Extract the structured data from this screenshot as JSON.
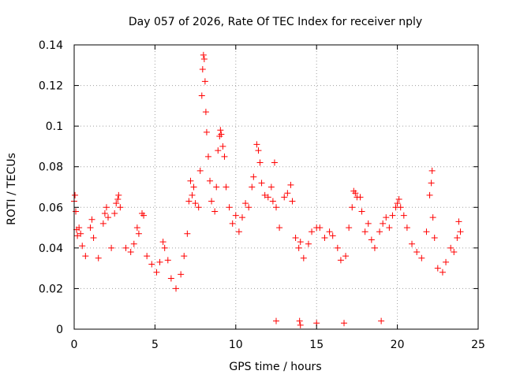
{
  "chart_data": {
    "type": "scatter",
    "title": "Day 057 of 2026, Rate Of TEC Index for receiver nply",
    "xlabel": "GPS time / hours",
    "ylabel": "ROTI / TECUs",
    "xlim": [
      0,
      25
    ],
    "ylim": [
      0,
      0.14
    ],
    "xticks": [
      "0",
      "5",
      "10",
      "15",
      "20",
      "25"
    ],
    "yticks": [
      "0",
      "0.02",
      "0.04",
      "0.06",
      "0.08",
      "0.1",
      "0.12",
      "0.14"
    ],
    "grid": true,
    "marker": "+",
    "color": "#ff0000",
    "series": [
      {
        "name": "",
        "points": [
          [
            0.0,
            0.063
          ],
          [
            0.05,
            0.066
          ],
          [
            0.1,
            0.058
          ],
          [
            0.15,
            0.049
          ],
          [
            0.2,
            0.046
          ],
          [
            0.3,
            0.05
          ],
          [
            0.4,
            0.047
          ],
          [
            0.5,
            0.041
          ],
          [
            0.7,
            0.036
          ],
          [
            1.0,
            0.05
          ],
          [
            1.1,
            0.054
          ],
          [
            1.2,
            0.045
          ],
          [
            1.5,
            0.035
          ],
          [
            1.8,
            0.052
          ],
          [
            1.9,
            0.057
          ],
          [
            2.0,
            0.06
          ],
          [
            2.1,
            0.055
          ],
          [
            2.3,
            0.04
          ],
          [
            2.5,
            0.057
          ],
          [
            2.6,
            0.062
          ],
          [
            2.7,
            0.064
          ],
          [
            2.75,
            0.066
          ],
          [
            2.85,
            0.06
          ],
          [
            3.2,
            0.04
          ],
          [
            3.5,
            0.038
          ],
          [
            3.7,
            0.042
          ],
          [
            3.9,
            0.05
          ],
          [
            4.0,
            0.047
          ],
          [
            4.2,
            0.057
          ],
          [
            4.3,
            0.056
          ],
          [
            4.5,
            0.036
          ],
          [
            4.8,
            0.032
          ],
          [
            5.1,
            0.028
          ],
          [
            5.3,
            0.033
          ],
          [
            5.5,
            0.043
          ],
          [
            5.6,
            0.04
          ],
          [
            5.8,
            0.034
          ],
          [
            6.0,
            0.025
          ],
          [
            6.3,
            0.02
          ],
          [
            6.6,
            0.027
          ],
          [
            6.8,
            0.036
          ],
          [
            7.0,
            0.047
          ],
          [
            7.1,
            0.063
          ],
          [
            7.2,
            0.073
          ],
          [
            7.3,
            0.066
          ],
          [
            7.4,
            0.07
          ],
          [
            7.5,
            0.062
          ],
          [
            7.7,
            0.06
          ],
          [
            7.8,
            0.078
          ],
          [
            7.9,
            0.115
          ],
          [
            7.95,
            0.128
          ],
          [
            8.0,
            0.135
          ],
          [
            8.05,
            0.133
          ],
          [
            8.1,
            0.122
          ],
          [
            8.15,
            0.107
          ],
          [
            8.2,
            0.097
          ],
          [
            8.3,
            0.085
          ],
          [
            8.4,
            0.073
          ],
          [
            8.5,
            0.063
          ],
          [
            8.7,
            0.058
          ],
          [
            8.8,
            0.07
          ],
          [
            8.9,
            0.088
          ],
          [
            9.0,
            0.095
          ],
          [
            9.05,
            0.098
          ],
          [
            9.1,
            0.096
          ],
          [
            9.2,
            0.09
          ],
          [
            9.3,
            0.085
          ],
          [
            9.4,
            0.07
          ],
          [
            9.6,
            0.06
          ],
          [
            9.8,
            0.052
          ],
          [
            10.0,
            0.056
          ],
          [
            10.2,
            0.048
          ],
          [
            10.4,
            0.055
          ],
          [
            10.6,
            0.062
          ],
          [
            10.8,
            0.06
          ],
          [
            11.0,
            0.07
          ],
          [
            11.1,
            0.075
          ],
          [
            11.3,
            0.091
          ],
          [
            11.4,
            0.088
          ],
          [
            11.5,
            0.082
          ],
          [
            11.6,
            0.072
          ],
          [
            11.8,
            0.066
          ],
          [
            12.0,
            0.065
          ],
          [
            12.2,
            0.07
          ],
          [
            12.3,
            0.063
          ],
          [
            12.4,
            0.082
          ],
          [
            12.5,
            0.06
          ],
          [
            12.7,
            0.05
          ],
          [
            13.0,
            0.065
          ],
          [
            13.2,
            0.067
          ],
          [
            13.4,
            0.071
          ],
          [
            13.5,
            0.063
          ],
          [
            13.7,
            0.045
          ],
          [
            13.9,
            0.04
          ],
          [
            14.0,
            0.043
          ],
          [
            14.2,
            0.035
          ],
          [
            14.5,
            0.042
          ],
          [
            14.7,
            0.048
          ],
          [
            15.0,
            0.05
          ],
          [
            15.2,
            0.05
          ],
          [
            15.5,
            0.045
          ],
          [
            15.8,
            0.048
          ],
          [
            16.0,
            0.046
          ],
          [
            16.3,
            0.04
          ],
          [
            16.5,
            0.034
          ],
          [
            16.8,
            0.036
          ],
          [
            17.0,
            0.05
          ],
          [
            17.2,
            0.06
          ],
          [
            17.3,
            0.068
          ],
          [
            17.4,
            0.067
          ],
          [
            17.5,
            0.065
          ],
          [
            17.7,
            0.065
          ],
          [
            17.8,
            0.058
          ],
          [
            18.0,
            0.048
          ],
          [
            18.2,
            0.052
          ],
          [
            18.4,
            0.044
          ],
          [
            18.6,
            0.04
          ],
          [
            18.9,
            0.048
          ],
          [
            19.1,
            0.052
          ],
          [
            19.3,
            0.055
          ],
          [
            19.5,
            0.05
          ],
          [
            19.7,
            0.056
          ],
          [
            19.9,
            0.06
          ],
          [
            20.0,
            0.062
          ],
          [
            20.1,
            0.064
          ],
          [
            20.2,
            0.06
          ],
          [
            20.4,
            0.056
          ],
          [
            20.6,
            0.05
          ],
          [
            20.9,
            0.042
          ],
          [
            21.2,
            0.038
          ],
          [
            21.5,
            0.035
          ],
          [
            21.8,
            0.048
          ],
          [
            22.0,
            0.066
          ],
          [
            22.1,
            0.072
          ],
          [
            22.15,
            0.078
          ],
          [
            22.2,
            0.055
          ],
          [
            22.3,
            0.045
          ],
          [
            22.5,
            0.03
          ],
          [
            22.8,
            0.028
          ],
          [
            23.0,
            0.033
          ],
          [
            23.3,
            0.04
          ],
          [
            23.5,
            0.038
          ],
          [
            23.7,
            0.045
          ],
          [
            23.8,
            0.053
          ],
          [
            23.9,
            0.048
          ],
          [
            14.0,
            0.002
          ],
          [
            13.95,
            0.004
          ],
          [
            12.5,
            0.004
          ],
          [
            15.0,
            0.003
          ],
          [
            16.7,
            0.003
          ],
          [
            19.0,
            0.004
          ]
        ]
      }
    ]
  }
}
